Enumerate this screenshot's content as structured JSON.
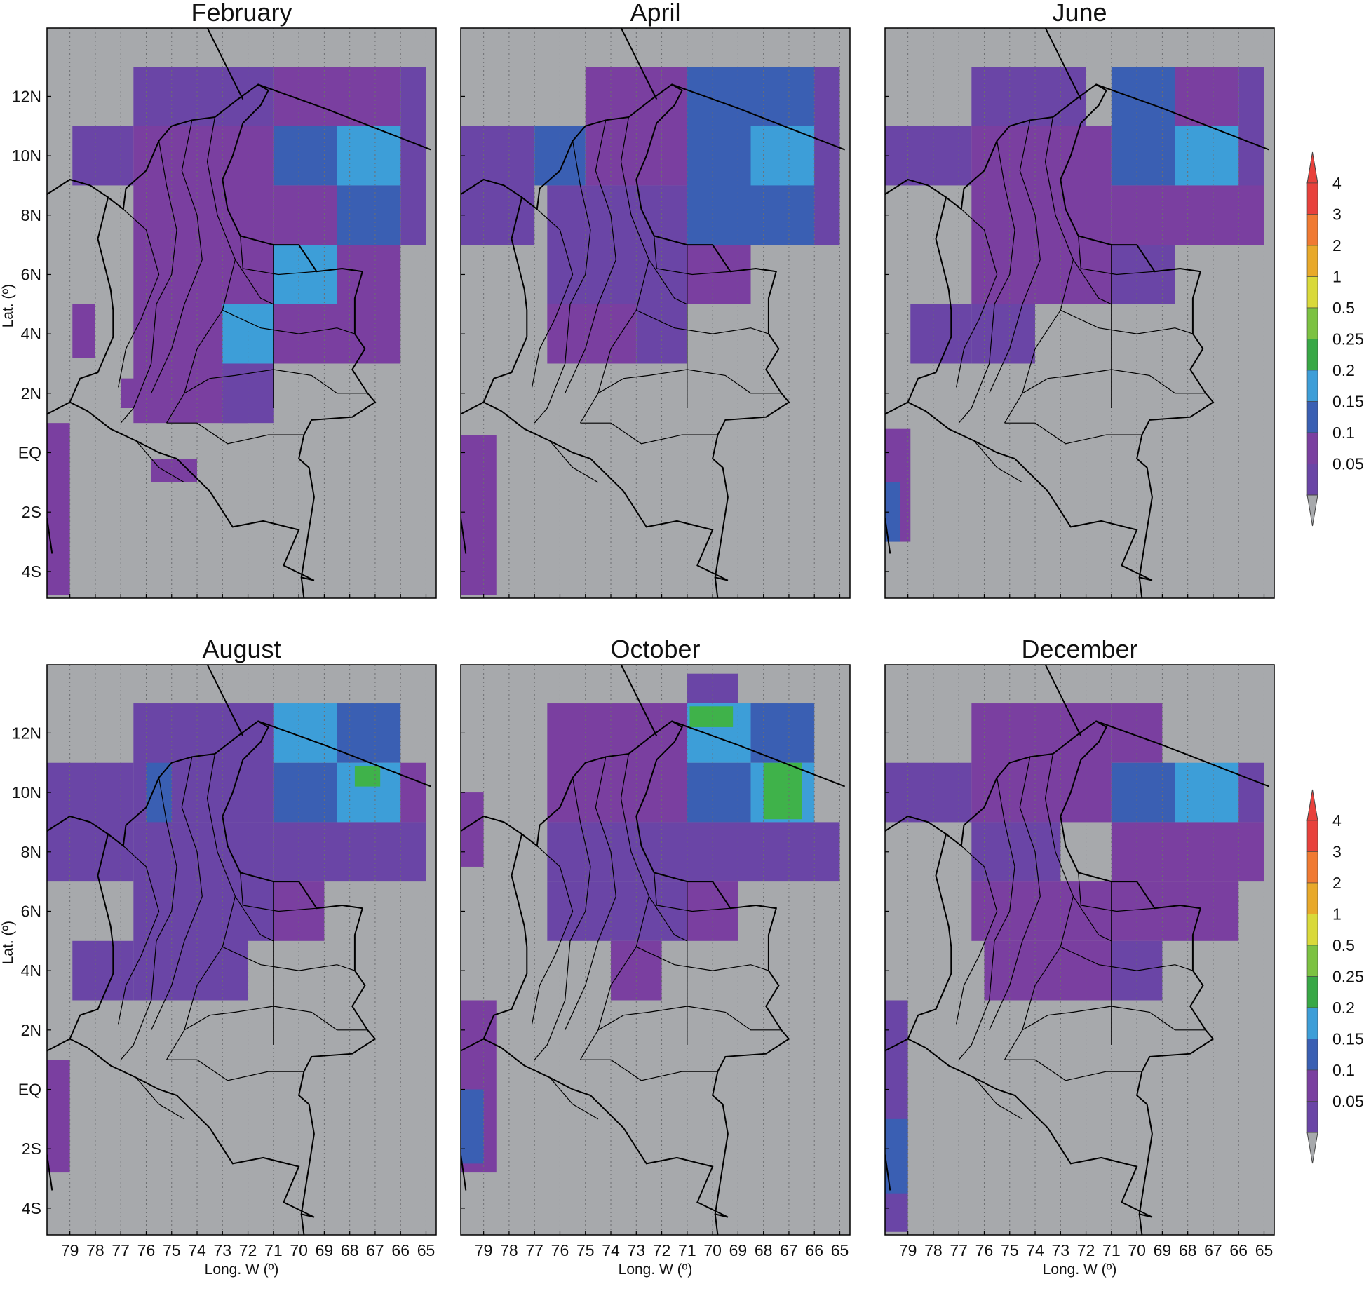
{
  "panels": [
    {
      "title": "February",
      "show_ylabels": true,
      "show_xlabels": false
    },
    {
      "title": "April",
      "show_ylabels": false,
      "show_xlabels": false
    },
    {
      "title": "June",
      "show_ylabels": false,
      "show_xlabels": false
    },
    {
      "title": "August",
      "show_ylabels": true,
      "show_xlabels": true
    },
    {
      "title": "October",
      "show_ylabels": false,
      "show_xlabels": true
    },
    {
      "title": "December",
      "show_ylabels": false,
      "show_xlabels": true
    }
  ],
  "y_ticks": [
    "12N",
    "10N",
    "8N",
    "6N",
    "4N",
    "2N",
    "EQ",
    "2S",
    "4S"
  ],
  "y_tick_values": [
    12,
    10,
    8,
    6,
    4,
    2,
    0,
    -2,
    -4
  ],
  "x_ticks": [
    "79",
    "78",
    "77",
    "76",
    "75",
    "74",
    "73",
    "72",
    "71",
    "70",
    "69",
    "68",
    "67",
    "66",
    "65"
  ],
  "x_tick_values": [
    79,
    78,
    77,
    76,
    75,
    74,
    73,
    72,
    71,
    70,
    69,
    68,
    67,
    66,
    65
  ],
  "x_axis_label": "Long. W (º)",
  "y_axis_label": "Lat. (º)",
  "colorbar": {
    "labels": [
      "4",
      "3",
      "2",
      "1",
      "0.5",
      "0.25",
      "0.2",
      "0.15",
      "0.1",
      "0.05"
    ],
    "colors": [
      "#e8413c",
      "#f07a32",
      "#e8a92a",
      "#d9d93a",
      "#7cc242",
      "#38a846",
      "#3d9ed8",
      "#3a5fb3",
      "#7a3fa0",
      "#6a45a6"
    ],
    "over_color": "#e8413c",
    "under_color": "#a7a9ac"
  },
  "colors": {
    "background_grid": "#a7a9ac",
    "no_data": "#ffffff",
    "border": "#000000"
  }
}
